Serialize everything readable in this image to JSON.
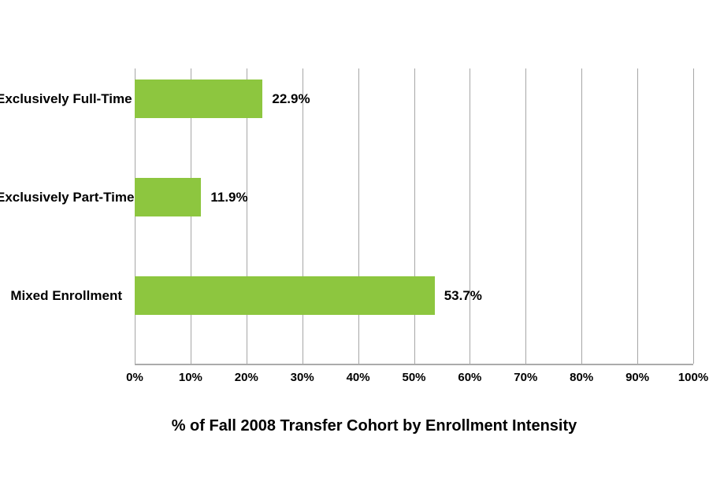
{
  "chart_data": {
    "type": "bar",
    "orientation": "horizontal",
    "title": "",
    "xlabel": "% of Fall 2008 Transfer Cohort by Enrollment Intensity",
    "ylabel": "",
    "categories": [
      "Exclusively Full-Time",
      "Exclusively Part-Time",
      "Mixed Enrollment"
    ],
    "values": [
      22.9,
      11.9,
      53.7
    ],
    "value_labels": [
      "22.9%",
      "11.9%",
      "53.7%"
    ],
    "xlim": [
      0,
      100
    ],
    "x_tick_labels": [
      "0%",
      "10%",
      "20%",
      "30%",
      "40%",
      "50%",
      "60%",
      "70%",
      "80%",
      "90%",
      "100%"
    ],
    "x_tick_values": [
      0,
      10,
      20,
      30,
      40,
      50,
      60,
      70,
      80,
      90,
      100
    ],
    "grid": "vertical gridlines on",
    "legend": "none",
    "colors": {
      "bar_fill": "#8dc63f",
      "gridline": "#a6a6a6",
      "axis_line": "#ababab",
      "text": "#000000",
      "background": "#ffffff"
    }
  }
}
